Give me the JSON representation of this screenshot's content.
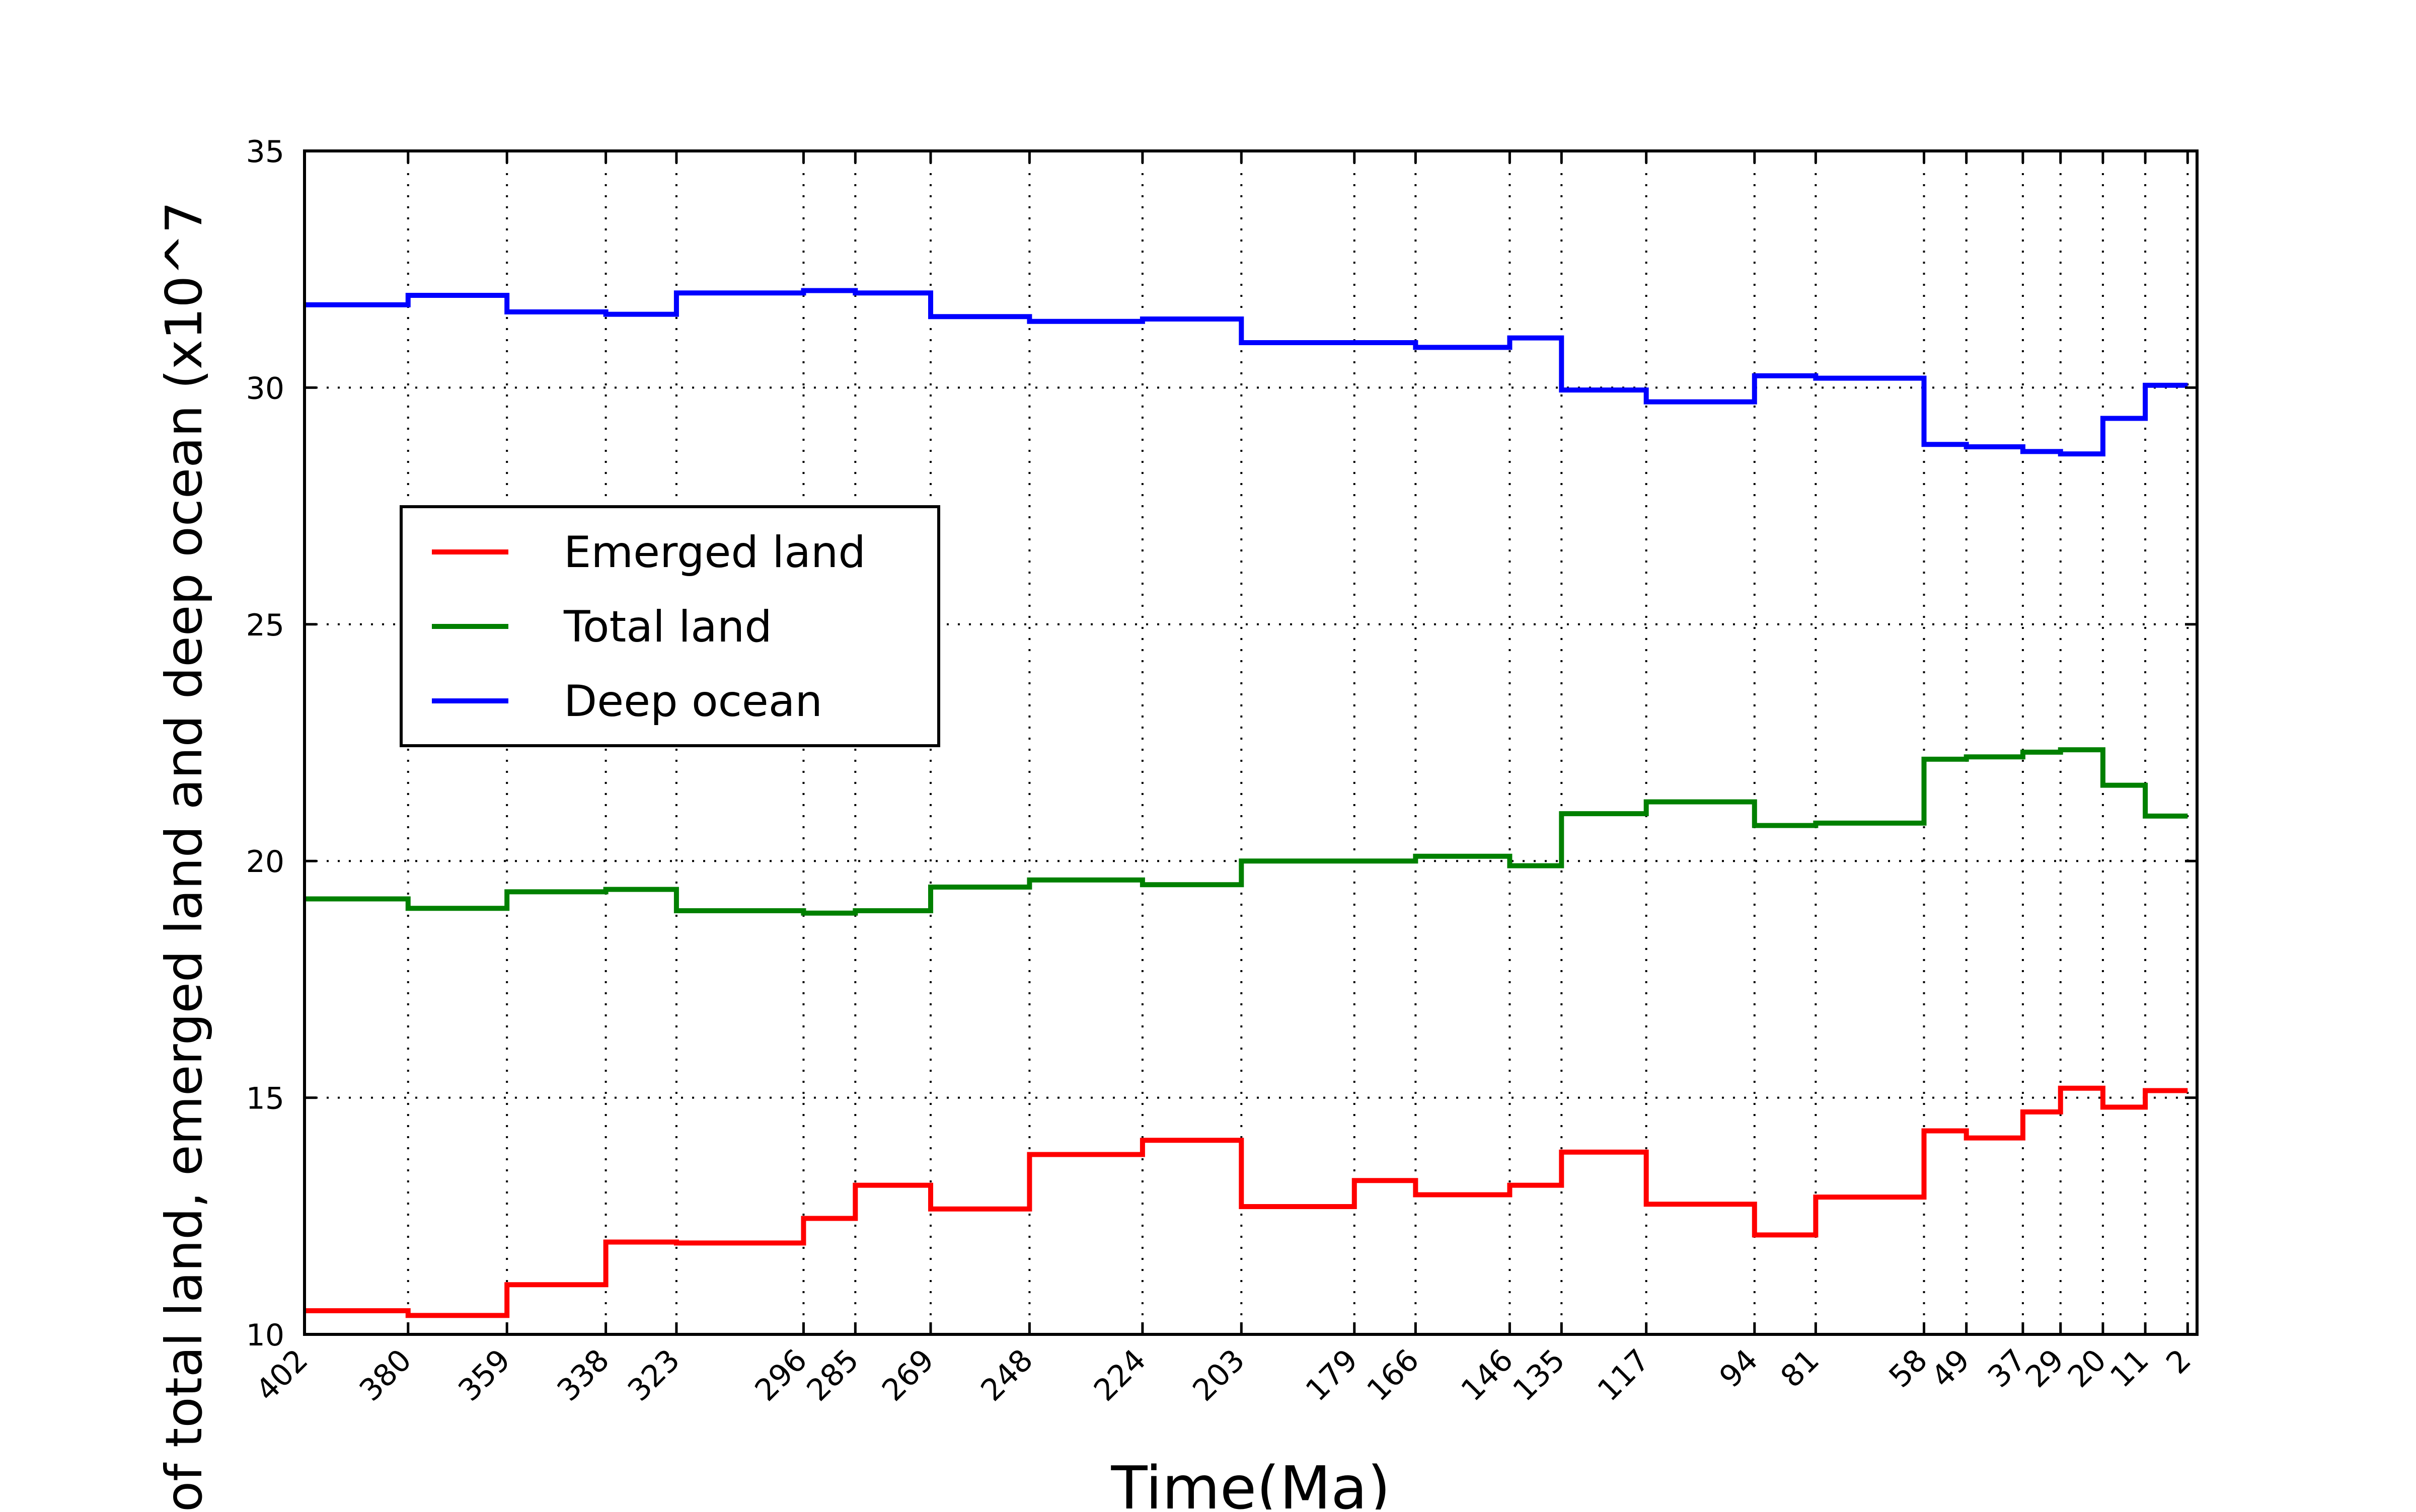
{
  "chart_data": {
    "type": "line",
    "step": true,
    "xlabel": "Time(Ma)",
    "ylabel": "of total land, emerged land and deep ocean (x10^7",
    "x_axis_reversed": true,
    "xlim": [
      402,
      0
    ],
    "ylim": [
      10,
      35
    ],
    "yticks": [
      10,
      15,
      20,
      25,
      30,
      35
    ],
    "xticks": [
      402,
      380,
      359,
      338,
      323,
      296,
      285,
      269,
      248,
      224,
      203,
      179,
      166,
      146,
      135,
      117,
      94,
      81,
      58,
      49,
      37,
      29,
      20,
      11,
      2
    ],
    "grid": true,
    "legend_position": "center-left",
    "series": [
      {
        "name": "Emerged land",
        "color": "#ff0000",
        "values": [
          10.5,
          10.4,
          11.05,
          11.95,
          11.93,
          12.45,
          13.15,
          12.65,
          13.8,
          14.1,
          12.7,
          13.25,
          12.95,
          13.15,
          13.85,
          12.75,
          12.1,
          12.9,
          14.3,
          14.15,
          14.7,
          15.2,
          14.8,
          15.15
        ]
      },
      {
        "name": "Total land",
        "color": "#008000",
        "values": [
          19.2,
          19.0,
          19.35,
          19.4,
          18.95,
          18.9,
          18.95,
          19.45,
          19.6,
          19.5,
          20.0,
          20.0,
          20.1,
          19.9,
          21.0,
          21.25,
          20.75,
          20.8,
          22.15,
          22.2,
          22.3,
          22.35,
          21.6,
          20.95
        ]
      },
      {
        "name": "Deep ocean",
        "color": "#0000ff",
        "values": [
          31.75,
          31.95,
          31.6,
          31.55,
          32.0,
          32.05,
          32.0,
          31.5,
          31.4,
          31.45,
          30.95,
          30.95,
          30.85,
          31.05,
          29.95,
          29.7,
          30.25,
          30.2,
          28.8,
          28.75,
          28.65,
          28.6,
          29.35,
          30.05
        ]
      }
    ]
  }
}
